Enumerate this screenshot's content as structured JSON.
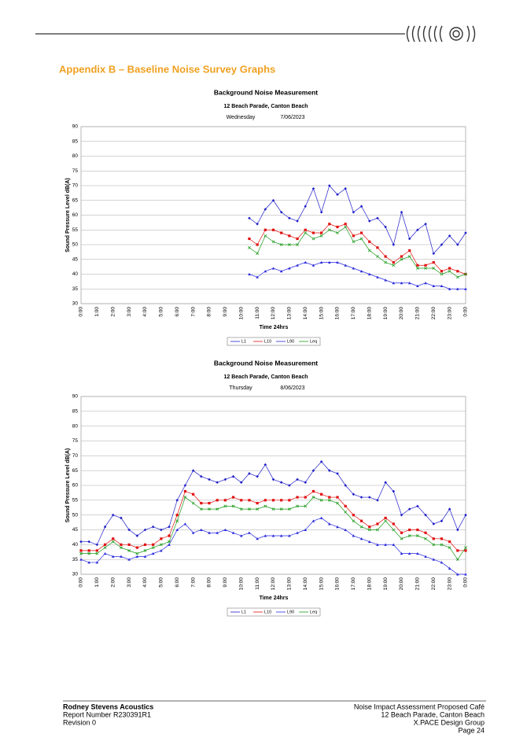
{
  "heading": "Appendix B – Baseline Noise Survey Graphs",
  "footer": {
    "left": [
      "Rodney Stevens Acoustics",
      "Report Number R230391R1",
      "Revision 0"
    ],
    "right": [
      "Noise Impact Assessment  Proposed Café",
      "12 Beach Parade, Canton Beach",
      "X.PACE Design Group",
      "Page 24"
    ]
  },
  "chart_data": [
    {
      "type": "line",
      "title": "Background Noise Measurement",
      "subtitle": "12 Beach Parade, Canton Beach",
      "day": "Wednesday",
      "date": "7/06/2023",
      "y_label": "Sound Pressure Level dB(A)",
      "x_label": "Time 24hrs",
      "categories": [
        "0:00",
        null,
        "1:00",
        null,
        "2:00",
        null,
        "3:00",
        null,
        "4:00",
        null,
        "5:00",
        null,
        "6:00",
        null,
        "7:00",
        null,
        "8:00",
        null,
        "9:00",
        null,
        "10:00",
        null,
        "11:00",
        null,
        "12:00",
        null,
        "13:00",
        null,
        "14:00",
        null,
        "15:00",
        null,
        "16:00",
        null,
        "17:00",
        null,
        "18:00",
        null,
        "19:00",
        null,
        "20:00",
        null,
        "21:00",
        null,
        "22:00",
        null,
        "23:00",
        null,
        "0:00"
      ],
      "ylim": [
        30,
        90
      ],
      "yticks": [
        30,
        35,
        40,
        45,
        50,
        55,
        60,
        65,
        70,
        75,
        80,
        85,
        90
      ],
      "grid": true,
      "legend": "bottom",
      "series": [
        {
          "name": "L1",
          "color": "#1f1fc8",
          "values": [
            null,
            null,
            null,
            null,
            null,
            null,
            null,
            null,
            null,
            null,
            null,
            null,
            null,
            null,
            null,
            null,
            null,
            null,
            null,
            null,
            null,
            59,
            57,
            62,
            65,
            61,
            59,
            58,
            63,
            69,
            61,
            70,
            67,
            69,
            61,
            63,
            58,
            59,
            56,
            50,
            61,
            52,
            55,
            57,
            47,
            50,
            53,
            50,
            54
          ]
        },
        {
          "name": "L10",
          "color": "#e01010",
          "values": [
            null,
            null,
            null,
            null,
            null,
            null,
            null,
            null,
            null,
            null,
            null,
            null,
            null,
            null,
            null,
            null,
            null,
            null,
            null,
            null,
            null,
            52,
            50,
            55,
            55,
            54,
            53,
            52,
            55,
            54,
            54,
            57,
            56,
            57,
            53,
            54,
            51,
            49,
            46,
            44,
            46,
            48,
            43,
            43,
            44,
            41,
            42,
            41,
            40
          ]
        },
        {
          "name": "L90",
          "color": "#2a2ae0",
          "values": [
            null,
            null,
            null,
            null,
            null,
            null,
            null,
            null,
            null,
            null,
            null,
            null,
            null,
            null,
            null,
            null,
            null,
            null,
            null,
            null,
            null,
            40,
            39,
            41,
            42,
            41,
            42,
            43,
            44,
            43,
            44,
            44,
            44,
            43,
            42,
            41,
            40,
            39,
            38,
            37,
            37,
            37,
            36,
            37,
            36,
            36,
            35,
            35,
            35
          ]
        },
        {
          "name": "Leq",
          "color": "#1a9a1a",
          "values": [
            null,
            null,
            null,
            null,
            null,
            null,
            null,
            null,
            null,
            null,
            null,
            null,
            null,
            null,
            null,
            null,
            null,
            null,
            null,
            null,
            null,
            49,
            47,
            53,
            51,
            50,
            50,
            50,
            54,
            52,
            53,
            55,
            54,
            56,
            51,
            52,
            48,
            46,
            44,
            43,
            45,
            46,
            42,
            42,
            42,
            40,
            41,
            39,
            40
          ]
        }
      ]
    },
    {
      "type": "line",
      "title": "Background Noise Measurement",
      "subtitle": "12 Beach Parade, Canton Beach",
      "day": "Thursday",
      "date": "8/06/2023",
      "y_label": "Sound Pressure Level dB(A)",
      "x_label": "Time 24hrs",
      "categories": [
        "0:00",
        null,
        "1:00",
        null,
        "2:00",
        null,
        "3:00",
        null,
        "4:00",
        null,
        "5:00",
        null,
        "6:00",
        null,
        "7:00",
        null,
        "8:00",
        null,
        "9:00",
        null,
        "10:00",
        null,
        "11:00",
        null,
        "12:00",
        null,
        "13:00",
        null,
        "14:00",
        null,
        "15:00",
        null,
        "16:00",
        null,
        "17:00",
        null,
        "18:00",
        null,
        "19:00",
        null,
        "20:00",
        null,
        "21:00",
        null,
        "22:00",
        null,
        "23:00",
        null,
        "0:00"
      ],
      "ylim": [
        30,
        90
      ],
      "yticks": [
        30,
        35,
        40,
        45,
        50,
        55,
        60,
        65,
        70,
        75,
        80,
        85,
        90
      ],
      "grid": true,
      "legend": "bottom",
      "series": [
        {
          "name": "L1",
          "color": "#1f1fc8",
          "values": [
            41,
            41,
            40,
            46,
            50,
            49,
            45,
            43,
            45,
            46,
            45,
            46,
            55,
            60,
            65,
            63,
            62,
            61,
            62,
            63,
            61,
            64,
            63,
            67,
            62,
            61,
            60,
            62,
            61,
            65,
            68,
            65,
            64,
            60,
            57,
            56,
            56,
            55,
            61,
            58,
            50,
            52,
            53,
            50,
            47,
            48,
            52,
            45,
            50
          ]
        },
        {
          "name": "L10",
          "color": "#e01010",
          "values": [
            38,
            38,
            38,
            40,
            42,
            40,
            40,
            39,
            40,
            40,
            42,
            43,
            50,
            58,
            57,
            54,
            54,
            55,
            55,
            56,
            55,
            55,
            54,
            55,
            55,
            55,
            55,
            56,
            56,
            58,
            57,
            56,
            56,
            53,
            50,
            48,
            46,
            47,
            49,
            47,
            44,
            45,
            45,
            44,
            42,
            42,
            41,
            38,
            38
          ]
        },
        {
          "name": "L90",
          "color": "#2a2ae0",
          "values": [
            35,
            34,
            34,
            37,
            36,
            36,
            35,
            36,
            36,
            37,
            38,
            40,
            45,
            47,
            44,
            45,
            44,
            44,
            45,
            44,
            43,
            44,
            42,
            43,
            43,
            43,
            43,
            44,
            45,
            48,
            49,
            47,
            46,
            45,
            43,
            42,
            41,
            40,
            40,
            40,
            37,
            37,
            37,
            36,
            35,
            34,
            32,
            30,
            30
          ]
        },
        {
          "name": "Leq",
          "color": "#1a9a1a",
          "values": [
            37,
            37,
            37,
            39,
            41,
            39,
            38,
            37,
            38,
            39,
            40,
            41,
            48,
            56,
            54,
            52,
            52,
            52,
            53,
            53,
            52,
            52,
            52,
            53,
            52,
            52,
            52,
            53,
            53,
            56,
            55,
            55,
            54,
            51,
            48,
            46,
            45,
            45,
            48,
            45,
            42,
            43,
            43,
            42,
            40,
            40,
            39,
            35,
            39
          ]
        }
      ]
    }
  ]
}
